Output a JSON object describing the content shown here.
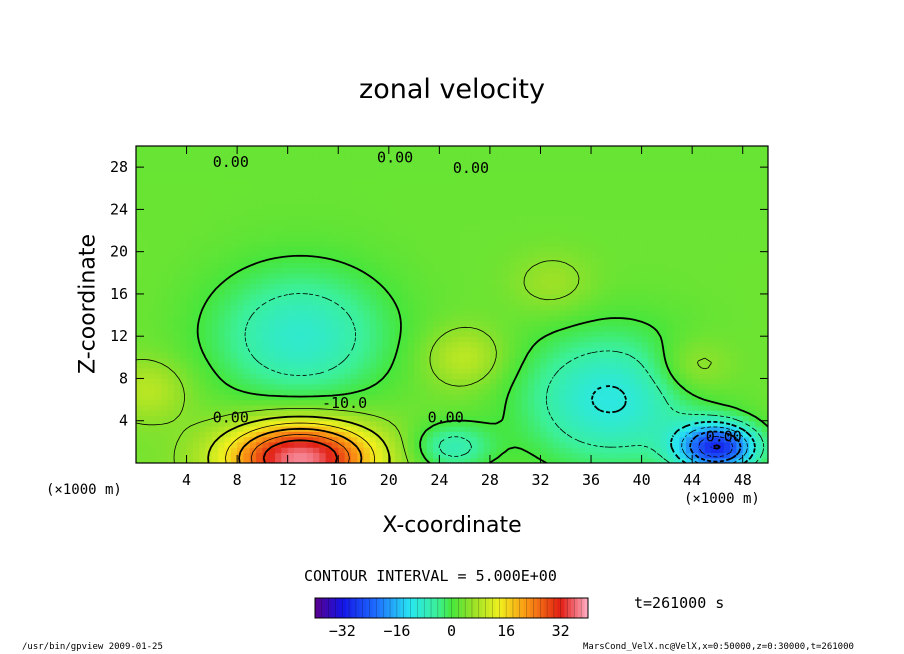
{
  "chart_data": {
    "type": "heatmap",
    "title": "zonal velocity",
    "xlabel": "X-coordinate",
    "ylabel": "Z-coordinate",
    "x_unit_left": "(×1000 m)",
    "x_unit_right": "(×1000 m)",
    "xlim": [
      0,
      50
    ],
    "ylim": [
      0,
      30
    ],
    "xticks": [
      "4",
      "8",
      "12",
      "16",
      "20",
      "24",
      "28",
      "32",
      "36",
      "40",
      "44",
      "48"
    ],
    "yticks": [
      "4",
      "8",
      "12",
      "16",
      "20",
      "24",
      "28"
    ],
    "contour_labels": [
      {
        "text": "0.00",
        "x": 7.5,
        "z": 28.5
      },
      {
        "text": "0.00",
        "x": 20.5,
        "z": 28.9
      },
      {
        "text": "0.00",
        "x": 26.5,
        "z": 27.9
      },
      {
        "text": "-10.0",
        "x": 16.5,
        "z": 5.7
      },
      {
        "text": "0.00",
        "x": 7.5,
        "z": 4.3
      },
      {
        "text": "0.00",
        "x": 24.5,
        "z": 4.3
      },
      {
        "text": "0.00",
        "x": 46.5,
        "z": 2.5
      }
    ],
    "features": [
      {
        "kind": "max",
        "x": 13,
        "z": 0.5,
        "value": 35
      },
      {
        "kind": "min",
        "x": 13,
        "z": 12,
        "value": -12
      },
      {
        "kind": "min",
        "x": 37.5,
        "z": 6,
        "value": -14
      },
      {
        "kind": "min",
        "x": 25,
        "z": 1.5,
        "value": -10
      },
      {
        "kind": "min",
        "x": 46,
        "z": 1.5,
        "value": -32
      },
      {
        "kind": "max",
        "x": 26,
        "z": 10,
        "value": 7
      },
      {
        "kind": "max",
        "x": 44,
        "z": 9,
        "value": 6
      },
      {
        "kind": "max",
        "x": 33,
        "z": 17,
        "value": 4
      },
      {
        "kind": "max",
        "x": 1,
        "z": 7,
        "value": 6
      }
    ],
    "contour_interval_text": "CONTOUR INTERVAL = 5.000E+00",
    "colorbar": {
      "min": -40,
      "max": 40,
      "ticks": [
        "−32",
        "−16",
        "0",
        "16",
        "32"
      ],
      "tick_values": [
        -32,
        -16,
        0,
        16,
        32
      ]
    },
    "time_label": "t=261000 s"
  },
  "footer": {
    "left": "/usr/bin/gpview  2009-01-25",
    "right": "MarsCond_VelX.nc@VelX,x=0:50000,z=0:30000,t=261000"
  }
}
